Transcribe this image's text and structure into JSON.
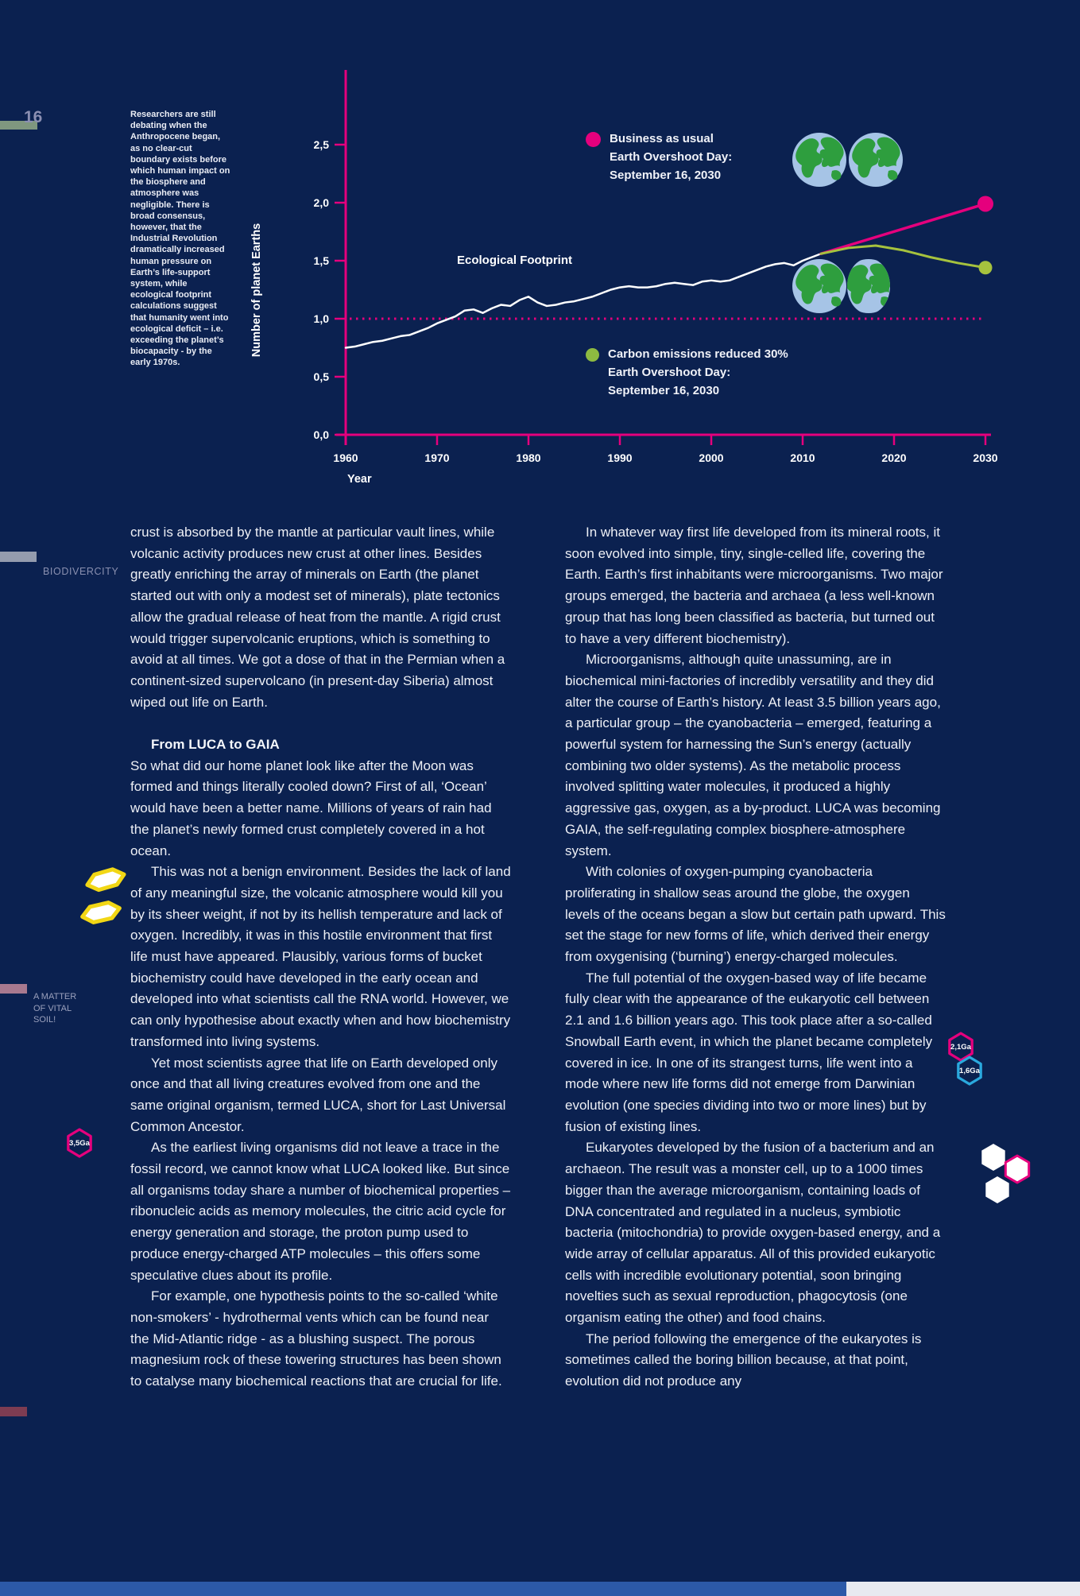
{
  "page": {
    "number": "16",
    "biodivercity_label": "BIODIVERCITY",
    "soil_label_lines": [
      "A MATTER",
      "OF VITAL",
      "SOIL!"
    ]
  },
  "margin_note": "Researchers are still debating when the Anthropocene began, as no clear-cut boundary exists before which human impact on the biosphere and atmosphere was negligible. There is broad consensus, however, that the Industrial Revolution dramatically increased human pressure on Earth’s life-support system, while ecological footprint calculations suggest that humanity went into ecological deficit – i.e. exceeding the planet’s biocapacity - by the early 1970s.",
  "chart_data": {
    "type": "line",
    "title": "",
    "xlabel": "Year",
    "ylabel": "Number of planet Earths",
    "xlim": [
      1960,
      2030
    ],
    "ylim": [
      0.0,
      2.75
    ],
    "grid": false,
    "axis_color": "#e5007d",
    "reference_value": 1.0,
    "yticks": [
      {
        "value": 0.0,
        "label": "0,0"
      },
      {
        "value": 0.5,
        "label": "0,5"
      },
      {
        "value": 1.0,
        "label": "1,0"
      },
      {
        "value": 1.5,
        "label": "1,5"
      },
      {
        "value": 2.0,
        "label": "2,0"
      },
      {
        "value": 2.5,
        "label": "2,5"
      }
    ],
    "xticks": [
      {
        "value": 1960,
        "label": "1960"
      },
      {
        "value": 1970,
        "label": "1970"
      },
      {
        "value": 1980,
        "label": "1980"
      },
      {
        "value": 1990,
        "label": "1990"
      },
      {
        "value": 2000,
        "label": "2000"
      },
      {
        "value": 2010,
        "label": "2010"
      },
      {
        "value": 2020,
        "label": "2020"
      },
      {
        "value": 2030,
        "label": "2030"
      }
    ],
    "series": [
      {
        "name": "Ecological Footprint",
        "color": "#ffffff",
        "width": 2.5,
        "end_dot": false,
        "x": [
          1960,
          1961,
          1962,
          1963,
          1964,
          1965,
          1966,
          1967,
          1968,
          1969,
          1970,
          1971,
          1972,
          1973,
          1974,
          1975,
          1976,
          1977,
          1978,
          1979,
          1980,
          1981,
          1982,
          1983,
          1984,
          1985,
          1986,
          1987,
          1988,
          1989,
          1990,
          1991,
          1992,
          1993,
          1994,
          1995,
          1996,
          1997,
          1998,
          1999,
          2000,
          2001,
          2002,
          2003,
          2004,
          2005,
          2006,
          2007,
          2008,
          2009,
          2010,
          2011,
          2012
        ],
        "y": [
          0.75,
          0.76,
          0.78,
          0.8,
          0.81,
          0.83,
          0.85,
          0.86,
          0.89,
          0.92,
          0.96,
          0.99,
          1.02,
          1.07,
          1.08,
          1.05,
          1.09,
          1.12,
          1.11,
          1.16,
          1.19,
          1.14,
          1.11,
          1.12,
          1.14,
          1.15,
          1.17,
          1.19,
          1.22,
          1.25,
          1.27,
          1.28,
          1.27,
          1.27,
          1.28,
          1.3,
          1.31,
          1.3,
          1.29,
          1.32,
          1.33,
          1.32,
          1.33,
          1.36,
          1.39,
          1.42,
          1.45,
          1.47,
          1.48,
          1.46,
          1.5,
          1.53,
          1.56
        ]
      },
      {
        "name": "Business as usual",
        "color": "#e5007d",
        "width": 3.5,
        "end_dot": true,
        "dot_r": 10,
        "x": [
          2012,
          2030
        ],
        "y": [
          1.56,
          1.99
        ]
      },
      {
        "name": "Carbon emissions reduced 30%",
        "color": "#a6c23e",
        "width": 3,
        "end_dot": true,
        "dot_r": 8.5,
        "x": [
          2012,
          2015,
          2018,
          2021,
          2024,
          2027,
          2030
        ],
        "y": [
          1.56,
          1.61,
          1.63,
          1.59,
          1.53,
          1.48,
          1.44
        ]
      }
    ],
    "legend": [
      {
        "color": "#e5007d",
        "lines": [
          "Business as usual",
          "Earth Overshoot Day:",
          "September 16, 2030"
        ]
      },
      {
        "color": "#8dba41",
        "lines": [
          "Carbon emissions reduced 30%",
          "Earth Overshoot Day:",
          "September 16, 2030"
        ]
      }
    ]
  },
  "badges": {
    "ga35": {
      "label": "3,5Ga"
    },
    "ga21": {
      "label": "2,1Ga"
    },
    "ga16": {
      "label": "1,6Ga"
    }
  },
  "left_column": {
    "heading": "From LUCA to GAIA",
    "paragraphs": [
      {
        "text": "crust is absorbed by the mantle at particular vault lines, while volcanic activity produces new crust at other lines. Besides greatly enriching the array of minerals on Earth (the planet started out with only a modest set of minerals), plate tectonics allow the gradual release of heat from the mantle. A rigid crust would trigger supervolcanic eruptions, which is something to avoid at all times. We got a dose of that in the Permian when a continent-sized supervolcano (in present-day Siberia) almost wiped out life on Earth."
      },
      {
        "text": "So what did our home planet look like after the Moon was formed and things literally cooled down? First of all, ‘Ocean’ would have been a better name. Millions of years of rain had the planet’s newly formed crust completely covered in a hot ocean."
      },
      {
        "text": "This was not a benign environment. Besides the lack of land of any meaningful size, the volcanic atmosphere would kill you by its sheer weight, if not by its hellish temperature and lack of oxygen. Incredibly, it was in this hostile environment that first life must have appeared. Plausibly, various forms of bucket biochemistry could have developed in the early ocean and developed into what scientists call the RNA world. However, we can only hypothesise about exactly when and how biochemistry transformed into living systems."
      },
      {
        "text": "Yet most scientists agree that life on Earth developed only once and that all living creatures evolved from one and the same original organism, termed LUCA, short for Last Universal Common Ancestor."
      },
      {
        "text": "As the earliest living organisms did not leave a trace in the fossil record, we cannot know what LUCA looked like. But since all organisms today share a number of biochemical properties – ribonucleic acids as memory molecules, the citric acid cycle for energy generation and storage, the proton pump used to produce energy-charged ATP molecules – this offers some speculative clues about its profile."
      },
      {
        "text": "For example, one hypothesis points to the so-called ‘white non-smokers’ - hydrothermal vents which can be found near the Mid-Atlantic ridge - as a blushing suspect. The porous magnesium rock of these towering structures has been shown to catalyse many biochemical reactions that are crucial for life."
      }
    ]
  },
  "right_column": {
    "paragraphs": [
      {
        "text": "In whatever way first life developed from its mineral roots, it soon evolved into simple, tiny, single-celled life, covering the Earth. Earth’s first inhabitants were microorganisms. Two major groups emerged, the bacteria and archaea (a less well-known group that has long been classified as bacteria, but turned out to have a very different biochemistry)."
      },
      {
        "text": "Microorganisms, although quite unassuming, are in biochemical mini-factories of incredibly versatility and they did alter the course of Earth’s history. At least 3.5 billion years ago, a particular group – the cyanobacteria – emerged, featuring a powerful system for harnessing the Sun’s energy (actually combining two older systems). As the metabolic process involved splitting water molecules, it produced a highly aggressive gas, oxygen, as a by-product. LUCA was becoming GAIA, the self-regulating complex biosphere-atmosphere system."
      },
      {
        "text": "With colonies of oxygen-pumping cyanobacteria proliferating in shallow seas around the globe, the oxygen levels of the oceans began a slow but certain path upward. This set the stage for new forms of life, which derived their energy from oxygenising (‘burning’) energy-charged molecules."
      },
      {
        "text": "The full potential of the oxygen-based way of life became fully clear with the appearance of the eukaryotic cell between 2.1 and 1.6 billion years ago. This took place after a so-called Snowball Earth event, in which the planet became completely covered in ice. In one of its strangest turns, life went into a mode where new life forms did not emerge from Darwinian evolution (one species dividing into two or more lines) but by fusion of existing lines."
      },
      {
        "text": "Eukaryotes developed by the fusion of a bacterium and an archaeon. The result was a monster cell, up to a 1000 times bigger than the average microorganism, containing loads of DNA concentrated and regulated in a nucleus, symbiotic bacteria (mitochondria) to provide oxygen-based energy, and a wide array of cellular apparatus. All of this provided eukaryotic cells with incredible evolutionary potential, soon bringing novelties such as sexual reproduction, phagocytosis (one organism eating the other) and food chains."
      },
      {
        "text": "The period following the emergence of the eukaryotes is sometimes called the boring billion because, at that point, evolution did not produce any"
      }
    ]
  }
}
